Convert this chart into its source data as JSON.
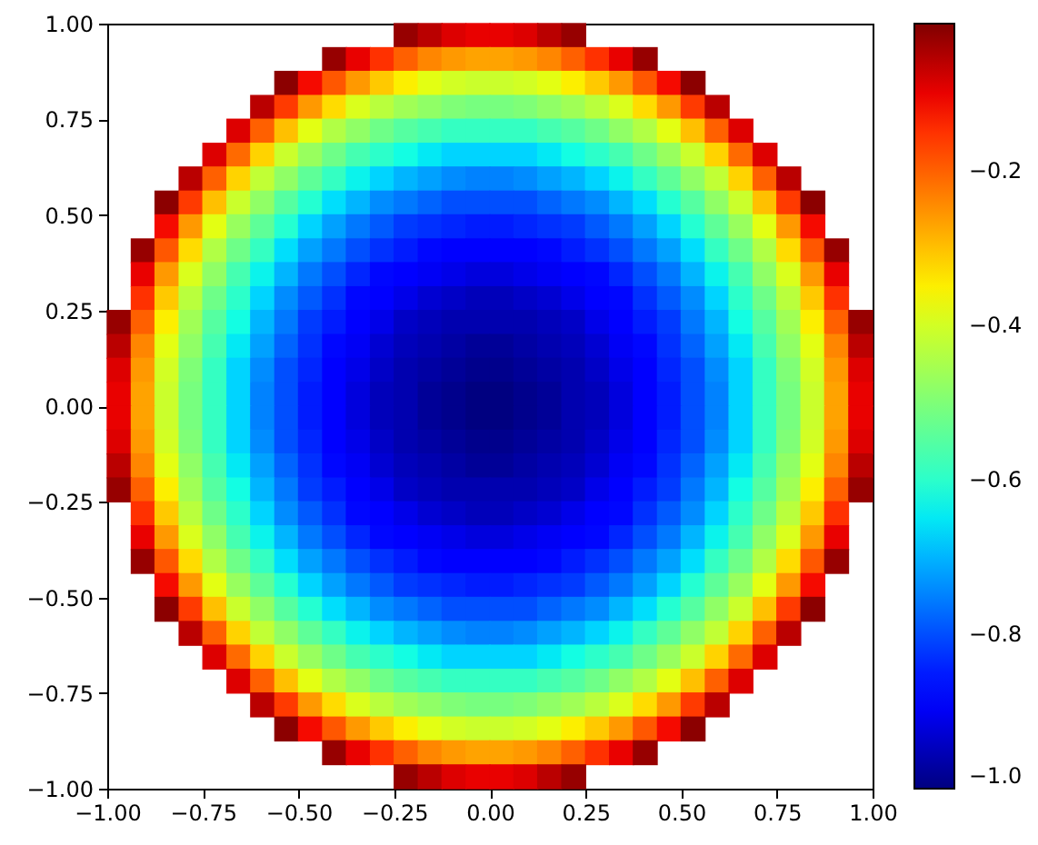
{
  "chart_data": {
    "type": "scatter",
    "marker": "square",
    "x": [
      -0.219,
      -0.156,
      -0.094,
      -0.031,
      0.031,
      0.094,
      0.156,
      0.219,
      -0.406,
      -0.344,
      -0.281,
      -0.219,
      -0.156,
      -0.094,
      -0.031,
      0.031,
      0.094,
      0.156,
      0.219,
      0.281,
      0.344,
      0.406,
      -0.531,
      -0.469,
      -0.406,
      -0.344,
      -0.281,
      -0.219,
      -0.156,
      -0.094,
      -0.031,
      0.031,
      0.094,
      0.156,
      0.219,
      0.281,
      0.344,
      0.406,
      0.469,
      0.531,
      -0.594,
      -0.531,
      -0.469,
      -0.406,
      -0.344,
      -0.281,
      -0.219,
      -0.156,
      -0.094,
      -0.031,
      0.031,
      0.094,
      0.156,
      0.219,
      0.281,
      0.344,
      0.406,
      0.469,
      0.531,
      0.594,
      -0.656,
      -0.594,
      -0.531,
      -0.469,
      -0.406,
      -0.344,
      -0.281,
      -0.219,
      -0.156,
      -0.094,
      -0.031,
      0.031,
      0.094,
      0.156,
      0.219,
      0.281,
      0.344,
      0.406,
      0.469,
      0.531,
      0.594,
      0.656,
      -0.719,
      -0.656,
      -0.594,
      -0.531,
      -0.469,
      -0.406,
      -0.344,
      -0.281,
      -0.219,
      -0.156,
      -0.094,
      -0.031,
      0.031,
      0.094,
      0.156,
      0.219,
      0.281,
      0.344,
      0.406,
      0.469,
      0.531,
      0.594,
      0.656,
      0.719,
      -0.781,
      -0.719,
      -0.656,
      -0.594,
      -0.531,
      -0.469,
      -0.406,
      -0.344,
      -0.281,
      -0.219,
      -0.156,
      -0.094,
      -0.031,
      0.031,
      0.094,
      0.156,
      0.219,
      0.281,
      0.344,
      0.406,
      0.469,
      0.531,
      0.594,
      0.656,
      0.719,
      0.781,
      -0.844,
      -0.781,
      -0.719,
      -0.656,
      -0.594,
      -0.531,
      -0.469,
      -0.406,
      -0.344,
      -0.281,
      -0.219,
      -0.156,
      -0.094,
      -0.031,
      0.031,
      0.094,
      0.156,
      0.219,
      0.281,
      0.344,
      0.406,
      0.469,
      0.531,
      0.594,
      0.656,
      0.719,
      0.781,
      0.844,
      -0.844,
      -0.781,
      -0.719,
      -0.656,
      -0.594,
      -0.531,
      -0.469,
      -0.406,
      -0.344,
      -0.281,
      -0.219,
      -0.156,
      -0.094,
      -0.031,
      0.031,
      0.094,
      0.156,
      0.219,
      0.281,
      0.344,
      0.406,
      0.469,
      0.531,
      0.594,
      0.656,
      0.719,
      0.781,
      0.844,
      -0.906,
      -0.844,
      -0.781,
      -0.719,
      -0.656,
      -0.594,
      -0.531,
      -0.469,
      -0.406,
      -0.344,
      -0.281,
      -0.219,
      -0.156,
      -0.094,
      -0.031,
      0.031,
      0.094,
      0.156,
      0.219,
      0.281,
      0.344,
      0.406,
      0.469,
      0.531,
      0.594,
      0.656,
      0.719,
      0.781,
      0.844,
      0.906,
      -0.906,
      -0.844,
      -0.781,
      -0.719,
      -0.656,
      -0.594,
      -0.531,
      -0.469,
      -0.406,
      -0.344,
      -0.281,
      -0.219,
      -0.156,
      -0.094,
      -0.031,
      0.031,
      0.094,
      0.156,
      0.219,
      0.281,
      0.344,
      0.406,
      0.469,
      0.531,
      0.594,
      0.656,
      0.719,
      0.781,
      0.844,
      0.906,
      -0.906,
      -0.844,
      -0.781,
      -0.719,
      -0.656,
      -0.594,
      -0.531,
      -0.469,
      -0.406,
      -0.344,
      -0.281,
      -0.219,
      -0.156,
      -0.094,
      -0.031,
      0.031,
      0.094,
      0.156,
      0.219,
      0.281,
      0.344,
      0.406,
      0.469,
      0.531,
      0.594,
      0.656,
      0.719,
      0.781,
      0.844,
      0.906,
      -0.969,
      -0.906,
      -0.844,
      -0.781,
      -0.719,
      -0.656,
      -0.594,
      -0.531,
      -0.469,
      -0.406,
      -0.344,
      -0.281,
      -0.219,
      -0.156,
      -0.094,
      -0.031,
      0.031,
      0.094,
      0.156,
      0.219,
      0.281,
      0.344,
      0.406,
      0.469,
      0.531,
      0.594,
      0.656,
      0.719,
      0.781,
      0.844,
      0.906,
      0.969,
      -0.969,
      -0.906,
      -0.844,
      -0.781,
      -0.719,
      -0.656,
      -0.594,
      -0.531,
      -0.469,
      -0.406,
      -0.344,
      -0.281,
      -0.219,
      -0.156,
      -0.094,
      -0.031,
      0.031,
      0.094,
      0.156,
      0.219,
      0.281,
      0.344,
      0.406,
      0.469,
      0.531,
      0.594,
      0.656,
      0.719,
      0.781,
      0.844,
      0.906,
      0.969,
      -0.969,
      -0.906,
      -0.844,
      -0.781,
      -0.719,
      -0.656,
      -0.594,
      -0.531,
      -0.469,
      -0.406,
      -0.344,
      -0.281,
      -0.219,
      -0.156,
      -0.094,
      -0.031,
      0.031,
      0.094,
      0.156,
      0.219,
      0.281,
      0.344,
      0.406,
      0.469,
      0.531,
      0.594,
      0.656,
      0.719,
      0.781,
      0.844,
      0.906,
      0.969,
      -0.969,
      -0.906,
      -0.844,
      -0.781,
      -0.719,
      -0.656,
      -0.594,
      -0.531,
      -0.469,
      -0.406,
      -0.344,
      -0.281,
      -0.219,
      -0.156,
      -0.094,
      -0.031,
      0.031,
      0.094,
      0.156,
      0.219,
      0.281,
      0.344,
      0.406,
      0.469,
      0.531,
      0.594,
      0.656,
      0.719,
      0.781,
      0.844,
      0.906,
      0.969,
      -0.969,
      -0.906,
      -0.844,
      -0.781,
      -0.719,
      -0.656,
      -0.594,
      -0.531,
      -0.469,
      -0.406,
      -0.344,
      -0.281,
      -0.219,
      -0.156,
      -0.094,
      -0.031,
      0.031,
      0.094,
      0.156,
      0.219,
      0.281,
      0.344,
      0.406,
      0.469,
      0.531,
      0.594,
      0.656,
      0.719,
      0.781,
      0.844,
      0.906,
      0.969,
      -0.969,
      -0.906,
      -0.844,
      -0.781,
      -0.719,
      -0.656,
      -0.594,
      -0.531,
      -0.469,
      -0.406,
      -0.344,
      -0.281,
      -0.219,
      -0.156,
      -0.094,
      -0.031,
      0.031,
      0.094,
      0.156,
      0.219,
      0.281,
      0.344,
      0.406,
      0.469,
      0.531,
      0.594,
      0.656,
      0.719,
      0.781,
      0.844,
      0.906,
      0.969,
      -0.969,
      -0.906,
      -0.844,
      -0.781,
      -0.719,
      -0.656,
      -0.594,
      -0.531,
      -0.469,
      -0.406,
      -0.344,
      -0.281,
      -0.219,
      -0.156,
      -0.094,
      -0.031,
      0.031,
      0.094,
      0.156,
      0.219,
      0.281,
      0.344,
      0.406,
      0.469,
      0.531,
      0.594,
      0.656,
      0.719,
      0.781,
      0.844,
      0.906,
      0.969,
      -0.969,
      -0.906,
      -0.844,
      -0.781,
      -0.719,
      -0.656,
      -0.594,
      -0.531,
      -0.469,
      -0.406,
      -0.344,
      -0.281,
      -0.219,
      -0.156,
      -0.094,
      -0.031,
      0.031,
      0.094,
      0.156,
      0.219,
      0.281,
      0.344,
      0.406,
      0.469,
      0.531,
      0.594,
      0.656,
      0.719,
      0.781,
      0.844,
      0.906,
      0.969,
      -0.906,
      -0.844,
      -0.781,
      -0.719,
      -0.656,
      -0.594,
      -0.531,
      -0.469,
      -0.406,
      -0.344,
      -0.281,
      -0.219,
      -0.156,
      -0.094,
      -0.031,
      0.031,
      0.094,
      0.156,
      0.219,
      0.281,
      0.344,
      0.406,
      0.469,
      0.531,
      0.594,
      0.656,
      0.719,
      0.781,
      0.844,
      0.906,
      -0.906,
      -0.844,
      -0.781,
      -0.719,
      -0.656,
      -0.594,
      -0.531,
      -0.469,
      -0.406,
      -0.344,
      -0.281,
      -0.219,
      -0.156,
      -0.094,
      -0.031,
      0.031,
      0.094,
      0.156,
      0.219,
      0.281,
      0.344,
      0.406,
      0.469,
      0.531,
      0.594,
      0.656,
      0.719,
      0.781,
      0.844,
      0.906,
      -0.906,
      -0.844,
      -0.781,
      -0.719,
      -0.656,
      -0.594,
      -0.531,
      -0.469,
      -0.406,
      -0.344,
      -0.281,
      -0.219,
      -0.156,
      -0.094,
      -0.031,
      0.031,
      0.094,
      0.156,
      0.219,
      0.281,
      0.344,
      0.406,
      0.469,
      0.531,
      0.594,
      0.656,
      0.719,
      0.781,
      0.844,
      0.906,
      -0.844,
      -0.781,
      -0.719,
      -0.656,
      -0.594,
      -0.531,
      -0.469,
      -0.406,
      -0.344,
      -0.281,
      -0.219,
      -0.156,
      -0.094,
      -0.031,
      0.031,
      0.094,
      0.156,
      0.219,
      0.281,
      0.344,
      0.406,
      0.469,
      0.531,
      0.594,
      0.656,
      0.719,
      0.781,
      0.844,
      -0.844,
      -0.781,
      -0.719,
      -0.656,
      -0.594,
      -0.531,
      -0.469,
      -0.406,
      -0.344,
      -0.281,
      -0.219,
      -0.156,
      -0.094,
      -0.031,
      0.031,
      0.094,
      0.156,
      0.219,
      0.281,
      0.344,
      0.406,
      0.469,
      0.531,
      0.594,
      0.656,
      0.719,
      0.781,
      0.844,
      -0.781,
      -0.719,
      -0.656,
      -0.594,
      -0.531,
      -0.469,
      -0.406,
      -0.344,
      -0.281,
      -0.219,
      -0.156,
      -0.094,
      -0.031,
      0.031,
      0.094,
      0.156,
      0.219,
      0.281,
      0.344,
      0.406,
      0.469,
      0.531,
      0.594,
      0.656,
      0.719,
      0.781,
      -0.719,
      -0.656,
      -0.594,
      -0.531,
      -0.469,
      -0.406,
      -0.344,
      -0.281,
      -0.219,
      -0.156,
      -0.094,
      -0.031,
      0.031,
      0.094,
      0.156,
      0.219,
      0.281,
      0.344,
      0.406,
      0.469,
      0.531,
      0.594,
      0.656,
      0.719,
      -0.656,
      -0.594,
      -0.531,
      -0.469,
      -0.406,
      -0.344,
      -0.281,
      -0.219,
      -0.156,
      -0.094,
      -0.031,
      0.031,
      0.094,
      0.156,
      0.219,
      0.281,
      0.344,
      0.406,
      0.469,
      0.531,
      0.594,
      0.656,
      -0.594,
      -0.531,
      -0.469,
      -0.406,
      -0.344,
      -0.281,
      -0.219,
      -0.156,
      -0.094,
      -0.031,
      0.031,
      0.094,
      0.156,
      0.219,
      0.281,
      0.344,
      0.406,
      0.469,
      0.531,
      0.594,
      -0.531,
      -0.469,
      -0.406,
      -0.344,
      -0.281,
      -0.219,
      -0.156,
      -0.094,
      -0.031,
      0.031,
      0.094,
      0.156,
      0.219,
      0.281,
      0.344,
      0.406,
      0.469,
      0.531,
      -0.406,
      -0.344,
      -0.281,
      -0.219,
      -0.156,
      -0.094,
      -0.031,
      0.031,
      0.094,
      0.156,
      0.219,
      0.281,
      0.344,
      0.406,
      -0.219,
      -0.156,
      -0.094,
      -0.031,
      0.031,
      0.094,
      0.156,
      0.219
    ],
    "values": [
      0.969,
      0.969,
      0.969,
      0.969,
      0.969,
      0.969,
      0.969,
      0.969,
      0.906,
      0.906,
      0.906,
      0.906,
      0.906,
      0.906,
      0.906,
      0.906,
      0.906,
      0.906,
      0.906,
      0.906,
      0.906,
      0.906,
      0.844,
      0.844,
      0.844,
      0.844,
      0.844,
      0.844,
      0.844,
      0.844,
      0.844,
      0.844,
      0.844,
      0.844,
      0.844,
      0.844,
      0.844,
      0.844,
      0.844,
      0.844,
      0.781,
      0.781,
      0.781,
      0.781,
      0.781,
      0.781,
      0.781,
      0.781,
      0.781,
      0.781,
      0.781,
      0.781,
      0.781,
      0.781,
      0.781,
      0.781,
      0.781,
      0.781,
      0.781,
      0.781,
      0.719,
      0.719,
      0.719,
      0.719,
      0.719,
      0.719,
      0.719,
      0.719,
      0.719,
      0.719,
      0.719,
      0.719,
      0.719,
      0.719,
      0.719,
      0.719,
      0.719,
      0.719,
      0.719,
      0.719,
      0.719,
      0.719,
      0.656,
      0.656,
      0.656,
      0.656,
      0.656,
      0.656,
      0.656,
      0.656,
      0.656,
      0.656,
      0.656,
      0.656,
      0.656,
      0.656,
      0.656,
      0.656,
      0.656,
      0.656,
      0.656,
      0.656,
      0.656,
      0.656,
      0.656,
      0.656,
      0.594,
      0.594,
      0.594,
      0.594,
      0.594,
      0.594,
      0.594,
      0.594,
      0.594,
      0.594,
      0.594,
      0.594,
      0.594,
      0.594,
      0.594,
      0.594,
      0.594,
      0.594,
      0.594,
      0.594,
      0.594,
      0.594,
      0.594,
      0.594,
      0.594,
      0.594,
      0.531,
      0.531,
      0.531,
      0.531,
      0.531,
      0.531,
      0.531,
      0.531,
      0.531,
      0.531,
      0.531,
      0.531,
      0.531,
      0.531,
      0.531,
      0.531,
      0.531,
      0.531,
      0.531,
      0.531,
      0.531,
      0.531,
      0.531,
      0.531,
      0.531,
      0.531,
      0.531,
      0.531,
      0.469,
      0.469,
      0.469,
      0.469,
      0.469,
      0.469,
      0.469,
      0.469,
      0.469,
      0.469,
      0.469,
      0.469,
      0.469,
      0.469,
      0.469,
      0.469,
      0.469,
      0.469,
      0.469,
      0.469,
      0.469,
      0.469,
      0.469,
      0.469,
      0.469,
      0.469,
      0.469,
      0.469,
      0.406,
      0.406,
      0.406,
      0.406,
      0.406,
      0.406,
      0.406,
      0.406,
      0.406,
      0.406,
      0.406,
      0.406,
      0.406,
      0.406,
      0.406,
      0.406,
      0.406,
      0.406,
      0.406,
      0.406,
      0.406,
      0.406,
      0.406,
      0.406,
      0.406,
      0.406,
      0.406,
      0.406,
      0.406,
      0.406,
      0.344,
      0.344,
      0.344,
      0.344,
      0.344,
      0.344,
      0.344,
      0.344,
      0.344,
      0.344,
      0.344,
      0.344,
      0.344,
      0.344,
      0.344,
      0.344,
      0.344,
      0.344,
      0.344,
      0.344,
      0.344,
      0.344,
      0.344,
      0.344,
      0.344,
      0.344,
      0.344,
      0.344,
      0.344,
      0.344,
      0.281,
      0.281,
      0.281,
      0.281,
      0.281,
      0.281,
      0.281,
      0.281,
      0.281,
      0.281,
      0.281,
      0.281,
      0.281,
      0.281,
      0.281,
      0.281,
      0.281,
      0.281,
      0.281,
      0.281,
      0.281,
      0.281,
      0.281,
      0.281,
      0.281,
      0.281,
      0.281,
      0.281,
      0.281,
      0.281,
      0.219,
      0.219,
      0.219,
      0.219,
      0.219,
      0.219,
      0.219,
      0.219,
      0.219,
      0.219,
      0.219,
      0.219,
      0.219,
      0.219,
      0.219,
      0.219,
      0.219,
      0.219,
      0.219,
      0.219,
      0.219,
      0.219,
      0.219,
      0.219,
      0.219,
      0.219,
      0.219,
      0.219,
      0.219,
      0.219,
      0.219,
      0.219,
      0.156,
      0.156,
      0.156,
      0.156,
      0.156,
      0.156,
      0.156,
      0.156,
      0.156,
      0.156,
      0.156,
      0.156,
      0.156,
      0.156,
      0.156,
      0.156,
      0.156,
      0.156,
      0.156,
      0.156,
      0.156,
      0.156,
      0.156,
      0.156,
      0.156,
      0.156,
      0.156,
      0.156,
      0.156,
      0.156,
      0.156,
      0.156,
      0.094,
      0.094,
      0.094,
      0.094,
      0.094,
      0.094,
      0.094,
      0.094,
      0.094,
      0.094,
      0.094,
      0.094,
      0.094,
      0.094,
      0.094,
      0.094,
      0.094,
      0.094,
      0.094,
      0.094,
      0.094,
      0.094,
      0.094,
      0.094,
      0.094,
      0.094,
      0.094,
      0.094,
      0.094,
      0.094,
      0.094,
      0.094,
      0.031,
      0.031,
      0.031,
      0.031,
      0.031,
      0.031,
      0.031,
      0.031,
      0.031,
      0.031,
      0.031,
      0.031,
      0.031,
      0.031,
      0.031,
      0.031,
      0.031,
      0.031,
      0.031,
      0.031,
      0.031,
      0.031,
      0.031,
      0.031,
      0.031,
      0.031,
      0.031,
      0.031,
      0.031,
      0.031,
      0.031,
      0.031,
      -0.031,
      -0.031,
      -0.031,
      -0.031,
      -0.031,
      -0.031,
      -0.031,
      -0.031,
      -0.031,
      -0.031,
      -0.031,
      -0.031,
      -0.031,
      -0.031,
      -0.031,
      -0.031,
      -0.031,
      -0.031,
      -0.031,
      -0.031,
      -0.031,
      -0.031,
      -0.031,
      -0.031,
      -0.031,
      -0.031,
      -0.031,
      -0.031,
      -0.031,
      -0.031,
      -0.031,
      -0.031,
      -0.094,
      -0.094,
      -0.094,
      -0.094,
      -0.094,
      -0.094,
      -0.094,
      -0.094,
      -0.094,
      -0.094,
      -0.094,
      -0.094,
      -0.094,
      -0.094,
      -0.094,
      -0.094,
      -0.094,
      -0.094,
      -0.094,
      -0.094,
      -0.094,
      -0.094,
      -0.094,
      -0.094,
      -0.094,
      -0.094,
      -0.094,
      -0.094,
      -0.094,
      -0.094,
      -0.094,
      -0.094,
      -0.156,
      -0.156,
      -0.156,
      -0.156,
      -0.156,
      -0.156,
      -0.156,
      -0.156,
      -0.156,
      -0.156,
      -0.156,
      -0.156,
      -0.156,
      -0.156,
      -0.156,
      -0.156,
      -0.156,
      -0.156,
      -0.156,
      -0.156,
      -0.156,
      -0.156,
      -0.156,
      -0.156,
      -0.156,
      -0.156,
      -0.156,
      -0.156,
      -0.156,
      -0.156,
      -0.156,
      -0.156,
      -0.219,
      -0.219,
      -0.219,
      -0.219,
      -0.219,
      -0.219,
      -0.219,
      -0.219,
      -0.219,
      -0.219,
      -0.219,
      -0.219,
      -0.219,
      -0.219,
      -0.219,
      -0.219,
      -0.219,
      -0.219,
      -0.219,
      -0.219,
      -0.219,
      -0.219,
      -0.219,
      -0.219,
      -0.219,
      -0.219,
      -0.219,
      -0.219,
      -0.219,
      -0.219,
      -0.219,
      -0.219,
      -0.281,
      -0.281,
      -0.281,
      -0.281,
      -0.281,
      -0.281,
      -0.281,
      -0.281,
      -0.281,
      -0.281,
      -0.281,
      -0.281,
      -0.281,
      -0.281,
      -0.281,
      -0.281,
      -0.281,
      -0.281,
      -0.281,
      -0.281,
      -0.281,
      -0.281,
      -0.281,
      -0.281,
      -0.281,
      -0.281,
      -0.281,
      -0.281,
      -0.281,
      -0.281,
      -0.344,
      -0.344,
      -0.344,
      -0.344,
      -0.344,
      -0.344,
      -0.344,
      -0.344,
      -0.344,
      -0.344,
      -0.344,
      -0.344,
      -0.344,
      -0.344,
      -0.344,
      -0.344,
      -0.344,
      -0.344,
      -0.344,
      -0.344,
      -0.344,
      -0.344,
      -0.344,
      -0.344,
      -0.344,
      -0.344,
      -0.344,
      -0.344,
      -0.344,
      -0.344,
      -0.406,
      -0.406,
      -0.406,
      -0.406,
      -0.406,
      -0.406,
      -0.406,
      -0.406,
      -0.406,
      -0.406,
      -0.406,
      -0.406,
      -0.406,
      -0.406,
      -0.406,
      -0.406,
      -0.406,
      -0.406,
      -0.406,
      -0.406,
      -0.406,
      -0.406,
      -0.406,
      -0.406,
      -0.406,
      -0.406,
      -0.406,
      -0.406,
      -0.406,
      -0.406,
      -0.469,
      -0.469,
      -0.469,
      -0.469,
      -0.469,
      -0.469,
      -0.469,
      -0.469,
      -0.469,
      -0.469,
      -0.469,
      -0.469,
      -0.469,
      -0.469,
      -0.469,
      -0.469,
      -0.469,
      -0.469,
      -0.469,
      -0.469,
      -0.469,
      -0.469,
      -0.469,
      -0.469,
      -0.469,
      -0.469,
      -0.469,
      -0.469,
      -0.531,
      -0.531,
      -0.531,
      -0.531,
      -0.531,
      -0.531,
      -0.531,
      -0.531,
      -0.531,
      -0.531,
      -0.531,
      -0.531,
      -0.531,
      -0.531,
      -0.531,
      -0.531,
      -0.531,
      -0.531,
      -0.531,
      -0.531,
      -0.531,
      -0.531,
      -0.531,
      -0.531,
      -0.531,
      -0.531,
      -0.531,
      -0.531,
      -0.594,
      -0.594,
      -0.594,
      -0.594,
      -0.594,
      -0.594,
      -0.594,
      -0.594,
      -0.594,
      -0.594,
      -0.594,
      -0.594,
      -0.594,
      -0.594,
      -0.594,
      -0.594,
      -0.594,
      -0.594,
      -0.594,
      -0.594,
      -0.594,
      -0.594,
      -0.594,
      -0.594,
      -0.594,
      -0.594,
      -0.656,
      -0.656,
      -0.656,
      -0.656,
      -0.656,
      -0.656,
      -0.656,
      -0.656,
      -0.656,
      -0.656,
      -0.656,
      -0.656,
      -0.656,
      -0.656,
      -0.656,
      -0.656,
      -0.656,
      -0.656,
      -0.656,
      -0.656,
      -0.656,
      -0.656,
      -0.656,
      -0.656,
      -0.719,
      -0.719,
      -0.719,
      -0.719,
      -0.719,
      -0.719,
      -0.719,
      -0.719,
      -0.719,
      -0.719,
      -0.719,
      -0.719,
      -0.719,
      -0.719,
      -0.719,
      -0.719,
      -0.719,
      -0.719,
      -0.719,
      -0.719,
      -0.719,
      -0.719,
      -0.781,
      -0.781,
      -0.781,
      -0.781,
      -0.781,
      -0.781,
      -0.781,
      -0.781,
      -0.781,
      -0.781,
      -0.781,
      -0.781,
      -0.781,
      -0.781,
      -0.781,
      -0.781,
      -0.781,
      -0.781,
      -0.781,
      -0.781,
      -0.844,
      -0.844,
      -0.844,
      -0.844,
      -0.844,
      -0.844,
      -0.844,
      -0.844,
      -0.844,
      -0.844,
      -0.844,
      -0.844,
      -0.844,
      -0.844,
      -0.844,
      -0.844,
      -0.844,
      -0.844,
      -0.906,
      -0.906,
      -0.906,
      -0.906,
      -0.906,
      -0.906,
      -0.906,
      -0.906,
      -0.906,
      -0.906,
      -0.906,
      -0.906,
      -0.906,
      -0.906,
      -0.969,
      -0.969,
      -0.969,
      -0.969,
      -0.969,
      -0.969,
      -0.969,
      -0.969
    ],
    "cvalues": [
      -0.03,
      -0.06,
      -0.09,
      -0.1,
      -0.1,
      -0.09,
      -0.06,
      -0.03,
      -0.03,
      -0.1,
      -0.15,
      -0.2,
      -0.24,
      -0.26,
      -0.27,
      -0.27,
      -0.26,
      -0.24,
      -0.2,
      -0.15,
      -0.1,
      -0.03,
      -0.02,
      -0.11,
      -0.19,
      -0.26,
      -0.31,
      -0.35,
      -0.38,
      -0.4,
      -0.41,
      -0.41,
      -0.4,
      -0.38,
      -0.35,
      -0.31,
      -0.26,
      -0.19,
      -0.11,
      -0.02,
      -0.06,
      -0.16,
      -0.26,
      -0.33,
      -0.39,
      -0.43,
      -0.46,
      -0.48,
      -0.5,
      -0.51,
      -0.51,
      -0.5,
      -0.48,
      -0.46,
      -0.43,
      -0.39,
      -0.33,
      -0.26,
      -0.16,
      -0.06,
      -0.09,
      -0.2,
      -0.3,
      -0.38,
      -0.44,
      -0.48,
      -0.52,
      -0.55,
      -0.57,
      -0.59,
      -0.59,
      -0.59,
      -0.59,
      -0.57,
      -0.55,
      -0.52,
      -0.48,
      -0.44,
      -0.38,
      -0.3,
      -0.2,
      -0.09,
      -0.09,
      -0.21,
      -0.32,
      -0.41,
      -0.47,
      -0.52,
      -0.57,
      -0.6,
      -0.63,
      -0.65,
      -0.67,
      -0.67,
      -0.67,
      -0.67,
      -0.65,
      -0.63,
      -0.6,
      -0.57,
      -0.52,
      -0.47,
      -0.41,
      -0.32,
      -0.21,
      -0.09,
      -0.06,
      -0.2,
      -0.32,
      -0.42,
      -0.48,
      -0.54,
      -0.59,
      -0.64,
      -0.67,
      -0.7,
      -0.72,
      -0.74,
      -0.75,
      -0.75,
      -0.74,
      -0.72,
      -0.7,
      -0.67,
      -0.64,
      -0.59,
      -0.54,
      -0.48,
      -0.42,
      -0.32,
      -0.2,
      -0.06,
      -0.02,
      -0.16,
      -0.3,
      -0.41,
      -0.48,
      -0.55,
      -0.61,
      -0.66,
      -0.7,
      -0.74,
      -0.76,
      -0.78,
      -0.8,
      -0.8,
      -0.8,
      -0.8,
      -0.78,
      -0.76,
      -0.74,
      -0.7,
      -0.66,
      -0.61,
      -0.55,
      -0.48,
      -0.41,
      -0.3,
      -0.16,
      -0.02,
      -0.11,
      -0.26,
      -0.38,
      -0.47,
      -0.54,
      -0.61,
      -0.67,
      -0.72,
      -0.76,
      -0.79,
      -0.82,
      -0.83,
      -0.84,
      -0.85,
      -0.85,
      -0.84,
      -0.83,
      -0.82,
      -0.79,
      -0.76,
      -0.72,
      -0.67,
      -0.61,
      -0.54,
      -0.47,
      -0.38,
      -0.26,
      -0.11,
      -0.03,
      -0.19,
      -0.33,
      -0.44,
      -0.52,
      -0.59,
      -0.66,
      -0.72,
      -0.76,
      -0.8,
      -0.83,
      -0.85,
      -0.87,
      -0.88,
      -0.89,
      -0.89,
      -0.88,
      -0.87,
      -0.85,
      -0.83,
      -0.8,
      -0.76,
      -0.72,
      -0.66,
      -0.59,
      -0.52,
      -0.44,
      -0.33,
      -0.19,
      -0.03,
      -0.1,
      -0.26,
      -0.39,
      -0.48,
      -0.57,
      -0.64,
      -0.7,
      -0.76,
      -0.8,
      -0.84,
      -0.87,
      -0.89,
      -0.9,
      -0.91,
      -0.92,
      -0.92,
      -0.91,
      -0.9,
      -0.89,
      -0.87,
      -0.84,
      -0.8,
      -0.76,
      -0.7,
      -0.64,
      -0.57,
      -0.48,
      -0.39,
      -0.26,
      -0.1,
      -0.15,
      -0.31,
      -0.43,
      -0.52,
      -0.6,
      -0.67,
      -0.74,
      -0.79,
      -0.83,
      -0.87,
      -0.89,
      -0.91,
      -0.93,
      -0.94,
      -0.95,
      -0.95,
      -0.94,
      -0.93,
      -0.91,
      -0.89,
      -0.87,
      -0.83,
      -0.79,
      -0.74,
      -0.67,
      -0.6,
      -0.52,
      -0.43,
      -0.31,
      -0.15,
      -0.03,
      -0.2,
      -0.35,
      -0.46,
      -0.55,
      -0.63,
      -0.7,
      -0.76,
      -0.82,
      -0.85,
      -0.89,
      -0.91,
      -0.94,
      -0.95,
      -0.96,
      -0.96,
      -0.96,
      -0.96,
      -0.95,
      -0.94,
      -0.91,
      -0.89,
      -0.85,
      -0.82,
      -0.76,
      -0.7,
      -0.63,
      -0.55,
      -0.46,
      -0.35,
      -0.2,
      -0.03,
      -0.06,
      -0.24,
      -0.38,
      -0.48,
      -0.57,
      -0.65,
      -0.72,
      -0.78,
      -0.83,
      -0.87,
      -0.9,
      -0.93,
      -0.95,
      -0.96,
      -0.97,
      -0.98,
      -0.98,
      -0.97,
      -0.96,
      -0.95,
      -0.93,
      -0.9,
      -0.87,
      -0.83,
      -0.78,
      -0.72,
      -0.65,
      -0.57,
      -0.48,
      -0.38,
      -0.24,
      -0.06,
      -0.09,
      -0.26,
      -0.4,
      -0.5,
      -0.59,
      -0.67,
      -0.74,
      -0.8,
      -0.84,
      -0.88,
      -0.91,
      -0.94,
      -0.96,
      -0.97,
      -0.98,
      -0.99,
      -0.99,
      -0.98,
      -0.97,
      -0.96,
      -0.94,
      -0.91,
      -0.88,
      -0.84,
      -0.8,
      -0.74,
      -0.67,
      -0.59,
      -0.5,
      -0.4,
      -0.26,
      -0.09,
      -0.1,
      -0.27,
      -0.41,
      -0.51,
      -0.59,
      -0.67,
      -0.75,
      -0.8,
      -0.85,
      -0.89,
      -0.92,
      -0.95,
      -0.96,
      -0.98,
      -0.99,
      -1.0,
      -1.0,
      -0.99,
      -0.98,
      -0.96,
      -0.95,
      -0.92,
      -0.89,
      -0.85,
      -0.8,
      -0.75,
      -0.67,
      -0.59,
      -0.51,
      -0.41,
      -0.27,
      -0.1,
      -0.1,
      -0.27,
      -0.41,
      -0.51,
      -0.59,
      -0.67,
      -0.75,
      -0.8,
      -0.85,
      -0.89,
      -0.92,
      -0.95,
      -0.96,
      -0.98,
      -0.99,
      -1.0,
      -1.0,
      -0.99,
      -0.98,
      -0.96,
      -0.95,
      -0.92,
      -0.89,
      -0.85,
      -0.8,
      -0.75,
      -0.67,
      -0.59,
      -0.51,
      -0.41,
      -0.27,
      -0.1,
      -0.09,
      -0.26,
      -0.4,
      -0.5,
      -0.59,
      -0.67,
      -0.74,
      -0.8,
      -0.84,
      -0.88,
      -0.91,
      -0.94,
      -0.96,
      -0.97,
      -0.98,
      -0.99,
      -0.99,
      -0.98,
      -0.97,
      -0.96,
      -0.94,
      -0.91,
      -0.88,
      -0.84,
      -0.8,
      -0.74,
      -0.67,
      -0.59,
      -0.5,
      -0.4,
      -0.26,
      -0.09,
      -0.06,
      -0.24,
      -0.38,
      -0.48,
      -0.57,
      -0.65,
      -0.72,
      -0.78,
      -0.83,
      -0.87,
      -0.9,
      -0.93,
      -0.95,
      -0.96,
      -0.97,
      -0.98,
      -0.98,
      -0.97,
      -0.96,
      -0.95,
      -0.93,
      -0.9,
      -0.87,
      -0.83,
      -0.78,
      -0.72,
      -0.65,
      -0.57,
      -0.48,
      -0.38,
      -0.24,
      -0.06,
      -0.03,
      -0.2,
      -0.35,
      -0.46,
      -0.55,
      -0.63,
      -0.7,
      -0.76,
      -0.82,
      -0.85,
      -0.89,
      -0.91,
      -0.94,
      -0.95,
      -0.96,
      -0.96,
      -0.96,
      -0.96,
      -0.95,
      -0.94,
      -0.91,
      -0.89,
      -0.85,
      -0.82,
      -0.76,
      -0.7,
      -0.63,
      -0.55,
      -0.46,
      -0.35,
      -0.2,
      -0.03,
      -0.15,
      -0.31,
      -0.43,
      -0.52,
      -0.6,
      -0.67,
      -0.74,
      -0.79,
      -0.83,
      -0.87,
      -0.89,
      -0.91,
      -0.93,
      -0.94,
      -0.95,
      -0.95,
      -0.94,
      -0.93,
      -0.91,
      -0.89,
      -0.87,
      -0.83,
      -0.79,
      -0.74,
      -0.67,
      -0.6,
      -0.52,
      -0.43,
      -0.31,
      -0.15,
      -0.1,
      -0.26,
      -0.39,
      -0.48,
      -0.57,
      -0.64,
      -0.7,
      -0.76,
      -0.8,
      -0.84,
      -0.87,
      -0.89,
      -0.9,
      -0.91,
      -0.92,
      -0.92,
      -0.91,
      -0.9,
      -0.89,
      -0.87,
      -0.84,
      -0.8,
      -0.76,
      -0.7,
      -0.64,
      -0.57,
      -0.48,
      -0.39,
      -0.26,
      -0.1,
      -0.03,
      -0.19,
      -0.33,
      -0.44,
      -0.52,
      -0.59,
      -0.66,
      -0.72,
      -0.76,
      -0.8,
      -0.83,
      -0.85,
      -0.87,
      -0.88,
      -0.89,
      -0.89,
      -0.88,
      -0.87,
      -0.85,
      -0.83,
      -0.8,
      -0.76,
      -0.72,
      -0.66,
      -0.59,
      -0.52,
      -0.44,
      -0.33,
      -0.19,
      -0.03,
      -0.11,
      -0.26,
      -0.38,
      -0.47,
      -0.54,
      -0.61,
      -0.67,
      -0.72,
      -0.76,
      -0.79,
      -0.82,
      -0.83,
      -0.84,
      -0.85,
      -0.85,
      -0.84,
      -0.83,
      -0.82,
      -0.79,
      -0.76,
      -0.72,
      -0.67,
      -0.61,
      -0.54,
      -0.47,
      -0.38,
      -0.26,
      -0.11,
      -0.02,
      -0.16,
      -0.3,
      -0.41,
      -0.48,
      -0.55,
      -0.61,
      -0.66,
      -0.7,
      -0.74,
      -0.76,
      -0.78,
      -0.8,
      -0.8,
      -0.8,
      -0.8,
      -0.78,
      -0.76,
      -0.74,
      -0.7,
      -0.66,
      -0.61,
      -0.55,
      -0.48,
      -0.41,
      -0.3,
      -0.16,
      -0.02,
      -0.06,
      -0.2,
      -0.32,
      -0.42,
      -0.48,
      -0.54,
      -0.59,
      -0.64,
      -0.67,
      -0.7,
      -0.72,
      -0.74,
      -0.75,
      -0.75,
      -0.74,
      -0.72,
      -0.7,
      -0.67,
      -0.64,
      -0.59,
      -0.54,
      -0.48,
      -0.42,
      -0.32,
      -0.2,
      -0.06,
      -0.09,
      -0.21,
      -0.32,
      -0.41,
      -0.47,
      -0.52,
      -0.57,
      -0.6,
      -0.63,
      -0.65,
      -0.67,
      -0.67,
      -0.67,
      -0.67,
      -0.65,
      -0.63,
      -0.6,
      -0.57,
      -0.52,
      -0.47,
      -0.41,
      -0.32,
      -0.21,
      -0.09,
      -0.09,
      -0.2,
      -0.3,
      -0.38,
      -0.44,
      -0.48,
      -0.52,
      -0.55,
      -0.57,
      -0.59,
      -0.59,
      -0.59,
      -0.59,
      -0.57,
      -0.55,
      -0.52,
      -0.48,
      -0.44,
      -0.38,
      -0.3,
      -0.2,
      -0.09,
      -0.06,
      -0.16,
      -0.26,
      -0.33,
      -0.39,
      -0.43,
      -0.46,
      -0.48,
      -0.5,
      -0.51,
      -0.51,
      -0.5,
      -0.48,
      -0.46,
      -0.43,
      -0.39,
      -0.33,
      -0.26,
      -0.16,
      -0.06,
      -0.02,
      -0.11,
      -0.19,
      -0.26,
      -0.31,
      -0.35,
      -0.38,
      -0.4,
      -0.41,
      -0.41,
      -0.4,
      -0.38,
      -0.35,
      -0.31,
      -0.26,
      -0.19,
      -0.11,
      -0.02,
      -0.03,
      -0.1,
      -0.15,
      -0.2,
      -0.24,
      -0.26,
      -0.27,
      -0.27,
      -0.26,
      -0.24,
      -0.2,
      -0.15,
      -0.1,
      -0.03,
      -0.03,
      -0.06,
      -0.09,
      -0.1,
      -0.1,
      -0.09,
      -0.06,
      -0.03
    ],
    "xlim": [
      -1,
      1
    ],
    "xticks": [
      {
        "value": -1,
        "label": "−1.00"
      },
      {
        "value": -0.75,
        "label": "−0.75"
      },
      {
        "value": -0.5,
        "label": "−0.50"
      },
      {
        "value": -0.25,
        "label": "−0.25"
      },
      {
        "value": 0,
        "label": "0.00"
      },
      {
        "value": 0.25,
        "label": "0.25"
      },
      {
        "value": 0.5,
        "label": "0.50"
      },
      {
        "value": 0.75,
        "label": "0.75"
      },
      {
        "value": 1,
        "label": "1.00"
      }
    ],
    "ylim": [
      -1,
      1
    ],
    "yticks": [
      {
        "value": -1,
        "label": "−1.00"
      },
      {
        "value": -0.75,
        "label": "−0.75"
      },
      {
        "value": -0.5,
        "label": "−0.50"
      },
      {
        "value": -0.25,
        "label": "−0.25"
      },
      {
        "value": 0,
        "label": "0.00"
      },
      {
        "value": 0.25,
        "label": "0.25"
      },
      {
        "value": 0.5,
        "label": "0.50"
      },
      {
        "value": 0.75,
        "label": "0.75"
      },
      {
        "value": 1,
        "label": "1.00"
      }
    ],
    "clim": [
      -1,
      -0.01
    ],
    "cticks": [
      {
        "value": -1,
        "label": "−1.0"
      },
      {
        "value": -0.8,
        "label": "−0.8"
      },
      {
        "value": -0.6,
        "label": "−0.6"
      },
      {
        "value": -0.4,
        "label": "−0.4"
      },
      {
        "value": -0.2,
        "label": "−0.2"
      }
    ]
  }
}
